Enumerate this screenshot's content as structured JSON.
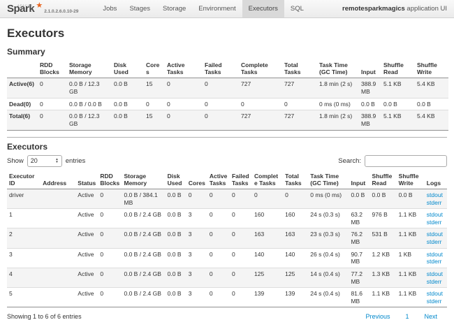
{
  "navbar": {
    "logo": {
      "brand": "Spark",
      "apache": "APACHE",
      "star_icon": "★"
    },
    "version": "2.1.0.2.6.0.10-29",
    "tabs": [
      {
        "label": "Jobs",
        "active": false
      },
      {
        "label": "Stages",
        "active": false
      },
      {
        "label": "Storage",
        "active": false
      },
      {
        "label": "Environment",
        "active": false
      },
      {
        "label": "Executors",
        "active": true
      },
      {
        "label": "SQL",
        "active": false
      }
    ],
    "app_name": "remotesparkmagics",
    "app_suffix": " application UI"
  },
  "page_title": "Executors",
  "summary": {
    "heading": "Summary",
    "columns": [
      "",
      "RDD Blocks",
      "Storage Memory",
      "Disk Used",
      "Cores",
      "Active Tasks",
      "Failed Tasks",
      "Complete Tasks",
      "Total Tasks",
      "Task Time (GC Time)",
      "Input",
      "Shuffle Read",
      "Shuffle Write"
    ],
    "rows": [
      {
        "label": "Active(6)",
        "cells": [
          "0",
          "0.0 B / 12.3 GB",
          "0.0 B",
          "15",
          "0",
          "0",
          "727",
          "727",
          "1.8 min (2 s)",
          "388.9 MB",
          "5.1 KB",
          "5.4 KB"
        ]
      },
      {
        "label": "Dead(0)",
        "cells": [
          "0",
          "0.0 B / 0.0 B",
          "0.0 B",
          "0",
          "0",
          "0",
          "0",
          "0",
          "0 ms (0 ms)",
          "0.0 B",
          "0.0 B",
          "0.0 B"
        ]
      },
      {
        "label": "Total(6)",
        "cells": [
          "0",
          "0.0 B / 12.3 GB",
          "0.0 B",
          "15",
          "0",
          "0",
          "727",
          "727",
          "1.8 min (2 s)",
          "388.9 MB",
          "5.1 KB",
          "5.4 KB"
        ]
      }
    ]
  },
  "executors_table": {
    "heading": "Executors",
    "show_label": "Show",
    "entries_value": "20",
    "arrow_up_icon": "▲",
    "arrow_down_icon": "▼",
    "entries_label": "entries",
    "search_label": "Search:",
    "search_value": "",
    "columns": [
      "Executor ID",
      "Address",
      "Status",
      "RDD Blocks",
      "Storage Memory",
      "Disk Used",
      "Cores",
      "Active Tasks",
      "Failed Tasks",
      "Complete Tasks",
      "Total Tasks",
      "Task Time (GC Time)",
      "Input",
      "Shuffle Read",
      "Shuffle Write",
      "Logs"
    ],
    "rows": [
      {
        "id": "driver",
        "address": "",
        "status": "Active",
        "rdd_blocks": "0",
        "storage_memory": "0.0 B / 384.1 MB",
        "disk_used": "0.0 B",
        "cores": "0",
        "active_tasks": "0",
        "failed_tasks": "0",
        "complete_tasks": "0",
        "total_tasks": "0",
        "task_time": "0 ms (0 ms)",
        "input": "0.0 B",
        "shuffle_read": "0.0 B",
        "shuffle_write": "0.0 B",
        "logs": [
          "stdout",
          "stderr"
        ]
      },
      {
        "id": "1",
        "address": "",
        "status": "Active",
        "rdd_blocks": "0",
        "storage_memory": "0.0 B / 2.4 GB",
        "disk_used": "0.0 B",
        "cores": "3",
        "active_tasks": "0",
        "failed_tasks": "0",
        "complete_tasks": "160",
        "total_tasks": "160",
        "task_time": "24 s (0.3 s)",
        "input": "63.2 MB",
        "shuffle_read": "976 B",
        "shuffle_write": "1.1 KB",
        "logs": [
          "stdout",
          "stderr"
        ]
      },
      {
        "id": "2",
        "address": "",
        "status": "Active",
        "rdd_blocks": "0",
        "storage_memory": "0.0 B / 2.4 GB",
        "disk_used": "0.0 B",
        "cores": "3",
        "active_tasks": "0",
        "failed_tasks": "0",
        "complete_tasks": "163",
        "total_tasks": "163",
        "task_time": "23 s (0.3 s)",
        "input": "76.2 MB",
        "shuffle_read": "531 B",
        "shuffle_write": "1.1 KB",
        "logs": [
          "stdout",
          "stderr"
        ]
      },
      {
        "id": "3",
        "address": "",
        "status": "Active",
        "rdd_blocks": "0",
        "storage_memory": "0.0 B / 2.4 GB",
        "disk_used": "0.0 B",
        "cores": "3",
        "active_tasks": "0",
        "failed_tasks": "0",
        "complete_tasks": "140",
        "total_tasks": "140",
        "task_time": "26 s (0.4 s)",
        "input": "90.7 MB",
        "shuffle_read": "1.2 KB",
        "shuffle_write": "1 KB",
        "logs": [
          "stdout",
          "stderr"
        ]
      },
      {
        "id": "4",
        "address": "",
        "status": "Active",
        "rdd_blocks": "0",
        "storage_memory": "0.0 B / 2.4 GB",
        "disk_used": "0.0 B",
        "cores": "3",
        "active_tasks": "0",
        "failed_tasks": "0",
        "complete_tasks": "125",
        "total_tasks": "125",
        "task_time": "14 s (0.4 s)",
        "input": "77.2 MB",
        "shuffle_read": "1.3 KB",
        "shuffle_write": "1.1 KB",
        "logs": [
          "stdout",
          "stderr"
        ]
      },
      {
        "id": "5",
        "address": "",
        "status": "Active",
        "rdd_blocks": "0",
        "storage_memory": "0.0 B / 2.4 GB",
        "disk_used": "0.0 B",
        "cores": "3",
        "active_tasks": "0",
        "failed_tasks": "0",
        "complete_tasks": "139",
        "total_tasks": "139",
        "task_time": "24 s (0.4 s)",
        "input": "81.6 MB",
        "shuffle_read": "1.1 KB",
        "shuffle_write": "1.1 KB",
        "logs": [
          "stdout",
          "stderr"
        ]
      }
    ],
    "footer_info": "Showing 1 to 6 of 6 entries",
    "pagination": {
      "previous": "Previous",
      "page": "1",
      "next": "Next"
    }
  }
}
